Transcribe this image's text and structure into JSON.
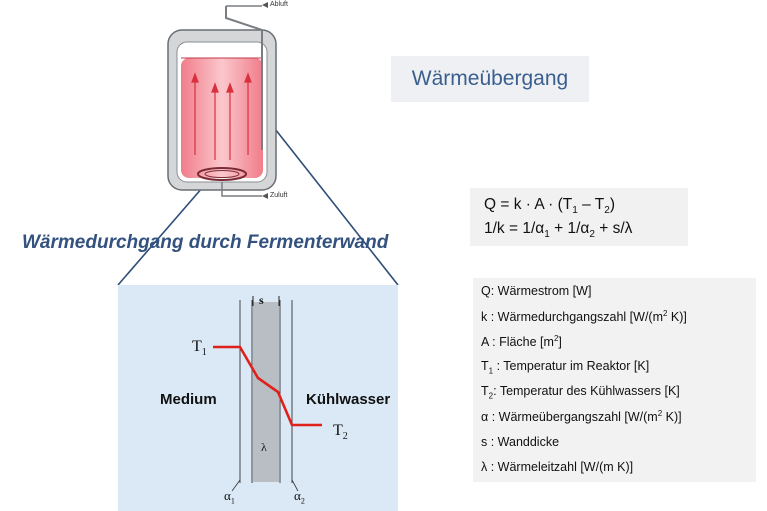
{
  "title": "Wärmeübergang",
  "subtitle": "Wärmedurchgang durch Fermenterwand",
  "fermenter": {
    "exhaust_label": "Abluft",
    "supply_label": "Zuluft"
  },
  "wall_diagram": {
    "s_label": "s",
    "t1_label": "T",
    "t1_sub": "1",
    "t2_label": "T",
    "t2_sub": "2",
    "medium_label": "Medium",
    "coolant_label": "Kühlwasser",
    "lambda_label": "λ",
    "alpha1_label": "α",
    "alpha1_sub": "1",
    "alpha2_label": "α",
    "alpha2_sub": "2"
  },
  "formulas": {
    "line1": {
      "a": "Q = k · A · (T",
      "s1": "1",
      "b": " – T",
      "s2": "2",
      "c": ")"
    },
    "line2": {
      "a": "1/k = 1/α",
      "s1": "1",
      "b": " + 1/α",
      "s2": "2",
      "c": " + s/λ"
    }
  },
  "legend": [
    {
      "a": "Q: Wärmestrom [W]"
    },
    {
      "a": "k  : Wärmedurchgangszahl [W/(m",
      "sup": "2",
      "b": " K)]"
    },
    {
      "a": "A : Fläche [m",
      "sup": "2",
      "b": "]"
    },
    {
      "a": "T",
      "sub": "1",
      "b": " : Temperatur im Reaktor [K]"
    },
    {
      "a": "T",
      "sub": "2",
      "b": ": Temperatur des Kühlwassers [K]"
    },
    {
      "a": "α : Wärmeübergangszahl [W/(m",
      "sup": "2",
      "b": " K)]"
    },
    {
      "a": "s : Wanddicke"
    },
    {
      "a": "λ : Wärmeleitzahl [W/(m K)]"
    }
  ],
  "colors": {
    "title": "#3a5f8f",
    "subtitle": "#33527f",
    "temperature_line": "#e0201a",
    "liquid": "#f3a0a8",
    "wall": "#b8bec4",
    "panel": "#dbe9f6"
  }
}
